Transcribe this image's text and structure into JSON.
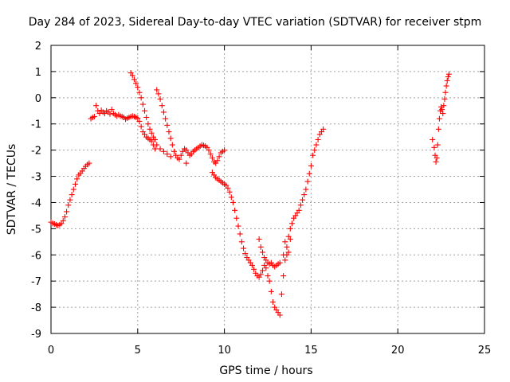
{
  "chart_data": {
    "type": "scatter",
    "title": "Day 284 of 2023, Sidereal Day-to-day VTEC variation (SDTVAR) for receiver stpm",
    "xlabel": "GPS time / hours",
    "ylabel": "SDTVAR / TECUs",
    "xlim": [
      0,
      25
    ],
    "ylim": [
      -9,
      2
    ],
    "xticks": [
      0,
      5,
      10,
      15,
      20,
      25
    ],
    "xtick_labels": [
      "0",
      "5",
      "10",
      "15",
      "20",
      "25"
    ],
    "yticks": [
      2,
      1,
      0,
      -1,
      -2,
      -3,
      -4,
      -5,
      -6,
      -7,
      -8,
      -9
    ],
    "ytick_labels": [
      "2",
      "1",
      "0",
      "-1",
      "-2",
      "-3",
      "-4",
      "-5",
      "-6",
      "-7",
      "-8",
      "-9"
    ],
    "grid": true,
    "marker": "plus",
    "color": "#ff0000",
    "series": [
      {
        "points": [
          [
            0,
            -4.75
          ],
          [
            0.1,
            -4.8
          ],
          [
            0.2,
            -4.82
          ],
          [
            0.3,
            -4.85
          ],
          [
            0.4,
            -4.88
          ],
          [
            0.5,
            -4.85
          ],
          [
            0.6,
            -4.8
          ],
          [
            0.7,
            -4.7
          ],
          [
            0.8,
            -4.55
          ],
          [
            0.9,
            -4.35
          ],
          [
            1.0,
            -4.1
          ],
          [
            1.1,
            -3.9
          ],
          [
            1.2,
            -3.7
          ],
          [
            1.3,
            -3.5
          ],
          [
            1.4,
            -3.3
          ],
          [
            1.5,
            -3.1
          ],
          [
            1.6,
            -2.95
          ],
          [
            1.7,
            -2.88
          ],
          [
            1.8,
            -2.8
          ],
          [
            1.9,
            -2.7
          ],
          [
            2.0,
            -2.62
          ],
          [
            2.1,
            -2.55
          ],
          [
            2.2,
            -2.5
          ],
          [
            2.3,
            -0.8
          ],
          [
            2.4,
            -0.75
          ],
          [
            2.5,
            -0.72
          ],
          [
            2.6,
            -0.3
          ],
          [
            2.7,
            -0.5
          ],
          [
            2.8,
            -0.6
          ],
          [
            2.9,
            -0.48
          ],
          [
            3.0,
            -0.55
          ],
          [
            3.1,
            -0.6
          ],
          [
            3.2,
            -0.5
          ],
          [
            3.3,
            -0.55
          ],
          [
            3.4,
            -0.62
          ],
          [
            3.5,
            -0.45
          ],
          [
            3.6,
            -0.6
          ],
          [
            3.7,
            -0.65
          ],
          [
            3.8,
            -0.7
          ],
          [
            3.9,
            -0.65
          ],
          [
            4.0,
            -0.7
          ],
          [
            4.1,
            -0.72
          ],
          [
            4.2,
            -0.75
          ],
          [
            4.3,
            -0.82
          ],
          [
            4.4,
            -0.78
          ],
          [
            4.5,
            -0.75
          ],
          [
            4.6,
            -0.72
          ],
          [
            4.7,
            -0.7
          ],
          [
            4.8,
            -0.72
          ],
          [
            4.9,
            -0.75
          ],
          [
            5.0,
            -0.78
          ],
          [
            5.1,
            -0.9
          ],
          [
            5.2,
            -1.1
          ],
          [
            5.3,
            -1.3
          ],
          [
            5.4,
            -1.4
          ],
          [
            5.5,
            -1.5
          ],
          [
            5.6,
            -1.55
          ],
          [
            5.7,
            -1.6
          ],
          [
            5.8,
            -1.65
          ],
          [
            5.9,
            -1.8
          ],
          [
            6.0,
            -1.95
          ],
          [
            4.6,
            0.95
          ],
          [
            4.7,
            0.85
          ],
          [
            4.8,
            0.7
          ],
          [
            4.9,
            0.55
          ],
          [
            5.0,
            0.4
          ],
          [
            5.1,
            0.2
          ],
          [
            5.2,
            0.0
          ],
          [
            5.3,
            -0.25
          ],
          [
            5.4,
            -0.5
          ],
          [
            5.5,
            -0.75
          ],
          [
            5.6,
            -1.0
          ],
          [
            5.7,
            -1.2
          ],
          [
            5.8,
            -1.35
          ],
          [
            5.9,
            -1.5
          ],
          [
            6.0,
            -1.6
          ],
          [
            6.1,
            0.3
          ],
          [
            6.2,
            0.15
          ],
          [
            6.3,
            -0.05
          ],
          [
            6.4,
            -0.3
          ],
          [
            6.5,
            -0.55
          ],
          [
            6.6,
            -0.8
          ],
          [
            6.7,
            -1.05
          ],
          [
            6.8,
            -1.3
          ],
          [
            6.9,
            -1.55
          ],
          [
            7.0,
            -1.8
          ],
          [
            7.1,
            -2.05
          ],
          [
            7.2,
            -2.2
          ],
          [
            7.3,
            -2.3
          ],
          [
            7.4,
            -2.35
          ],
          [
            6.1,
            -1.8
          ],
          [
            6.3,
            -1.95
          ],
          [
            6.5,
            -2.05
          ],
          [
            6.7,
            -2.15
          ],
          [
            6.9,
            -2.25
          ],
          [
            7.5,
            -2.2
          ],
          [
            7.6,
            -2.05
          ],
          [
            7.7,
            -1.95
          ],
          [
            7.8,
            -2.0
          ],
          [
            7.9,
            -2.1
          ],
          [
            8.0,
            -2.2
          ],
          [
            8.1,
            -2.15
          ],
          [
            8.2,
            -2.05
          ],
          [
            8.3,
            -2.0
          ],
          [
            8.4,
            -1.95
          ],
          [
            8.5,
            -1.9
          ],
          [
            8.6,
            -1.85
          ],
          [
            8.7,
            -1.8
          ],
          [
            8.8,
            -1.82
          ],
          [
            8.9,
            -1.85
          ],
          [
            9.0,
            -1.9
          ],
          [
            9.1,
            -2.0
          ],
          [
            9.2,
            -2.15
          ],
          [
            9.3,
            -2.3
          ],
          [
            9.4,
            -2.45
          ],
          [
            9.5,
            -2.5
          ],
          [
            9.6,
            -2.4
          ],
          [
            9.7,
            -2.25
          ],
          [
            9.8,
            -2.1
          ],
          [
            9.9,
            -2.05
          ],
          [
            10.0,
            -2.0
          ],
          [
            7.8,
            -2.5
          ],
          [
            9.3,
            -2.85
          ],
          [
            9.4,
            -2.95
          ],
          [
            9.5,
            -3.05
          ],
          [
            9.6,
            -3.1
          ],
          [
            9.7,
            -3.15
          ],
          [
            9.8,
            -3.2
          ],
          [
            9.9,
            -3.25
          ],
          [
            10.0,
            -3.3
          ],
          [
            10.1,
            -3.35
          ],
          [
            10.2,
            -3.45
          ],
          [
            10.3,
            -3.6
          ],
          [
            10.4,
            -3.8
          ],
          [
            10.5,
            -4.0
          ],
          [
            10.6,
            -4.3
          ],
          [
            10.7,
            -4.6
          ],
          [
            10.8,
            -4.9
          ],
          [
            10.9,
            -5.2
          ],
          [
            11.0,
            -5.5
          ],
          [
            11.1,
            -5.75
          ],
          [
            11.2,
            -5.95
          ],
          [
            11.3,
            -6.1
          ],
          [
            11.4,
            -6.2
          ],
          [
            11.5,
            -6.3
          ],
          [
            11.6,
            -6.4
          ],
          [
            11.7,
            -6.55
          ],
          [
            11.8,
            -6.7
          ],
          [
            11.9,
            -6.8
          ],
          [
            12.0,
            -6.85
          ],
          [
            12.1,
            -6.75
          ],
          [
            12.2,
            -6.6
          ],
          [
            12.3,
            -6.4
          ],
          [
            12.4,
            -6.2
          ],
          [
            12.5,
            -6.3
          ],
          [
            12.6,
            -6.35
          ],
          [
            12.6,
            -7.0
          ],
          [
            12.7,
            -7.4
          ],
          [
            12.8,
            -7.8
          ],
          [
            12.9,
            -8.0
          ],
          [
            13.0,
            -8.1
          ],
          [
            13.1,
            -8.2
          ],
          [
            13.2,
            -8.3
          ],
          [
            12.0,
            -5.4
          ],
          [
            12.1,
            -5.7
          ],
          [
            12.2,
            -5.9
          ],
          [
            12.3,
            -6.1
          ],
          [
            12.4,
            -6.5
          ],
          [
            12.5,
            -6.8
          ],
          [
            12.7,
            -6.3
          ],
          [
            12.8,
            -6.4
          ],
          [
            12.9,
            -6.45
          ],
          [
            13.0,
            -6.4
          ],
          [
            13.1,
            -6.35
          ],
          [
            13.2,
            -6.3
          ],
          [
            13.3,
            -7.5
          ],
          [
            13.4,
            -6.8
          ],
          [
            13.5,
            -6.2
          ],
          [
            13.6,
            -5.7
          ],
          [
            13.7,
            -5.3
          ],
          [
            13.8,
            -5.0
          ],
          [
            13.9,
            -4.8
          ],
          [
            13.4,
            -6.0
          ],
          [
            13.5,
            -5.5
          ],
          [
            13.6,
            -6.0
          ],
          [
            13.7,
            -5.9
          ],
          [
            13.8,
            -5.4
          ],
          [
            14.0,
            -4.6
          ],
          [
            14.1,
            -4.5
          ],
          [
            14.2,
            -4.4
          ],
          [
            14.3,
            -4.3
          ],
          [
            14.4,
            -4.1
          ],
          [
            14.5,
            -3.9
          ],
          [
            14.6,
            -3.7
          ],
          [
            14.7,
            -3.5
          ],
          [
            14.8,
            -3.2
          ],
          [
            14.9,
            -2.9
          ],
          [
            15.0,
            -2.6
          ],
          [
            15.1,
            -2.2
          ],
          [
            15.2,
            -2.0
          ],
          [
            15.3,
            -1.8
          ],
          [
            15.4,
            -1.6
          ],
          [
            15.5,
            -1.4
          ],
          [
            15.6,
            -1.3
          ],
          [
            15.7,
            -1.2
          ],
          [
            22.0,
            -1.6
          ],
          [
            22.1,
            -1.9
          ],
          [
            22.15,
            -2.2
          ],
          [
            22.2,
            -2.45
          ],
          [
            22.25,
            -2.3
          ],
          [
            22.3,
            -1.8
          ],
          [
            22.35,
            -1.2
          ],
          [
            22.4,
            -0.8
          ],
          [
            22.45,
            -0.5
          ],
          [
            22.5,
            -0.35
          ],
          [
            22.55,
            -0.45
          ],
          [
            22.6,
            -0.6
          ],
          [
            22.65,
            -0.3
          ],
          [
            22.7,
            -0.05
          ],
          [
            22.75,
            0.2
          ],
          [
            22.8,
            0.45
          ],
          [
            22.85,
            0.65
          ],
          [
            22.9,
            0.8
          ],
          [
            22.95,
            0.9
          ]
        ]
      }
    ]
  }
}
